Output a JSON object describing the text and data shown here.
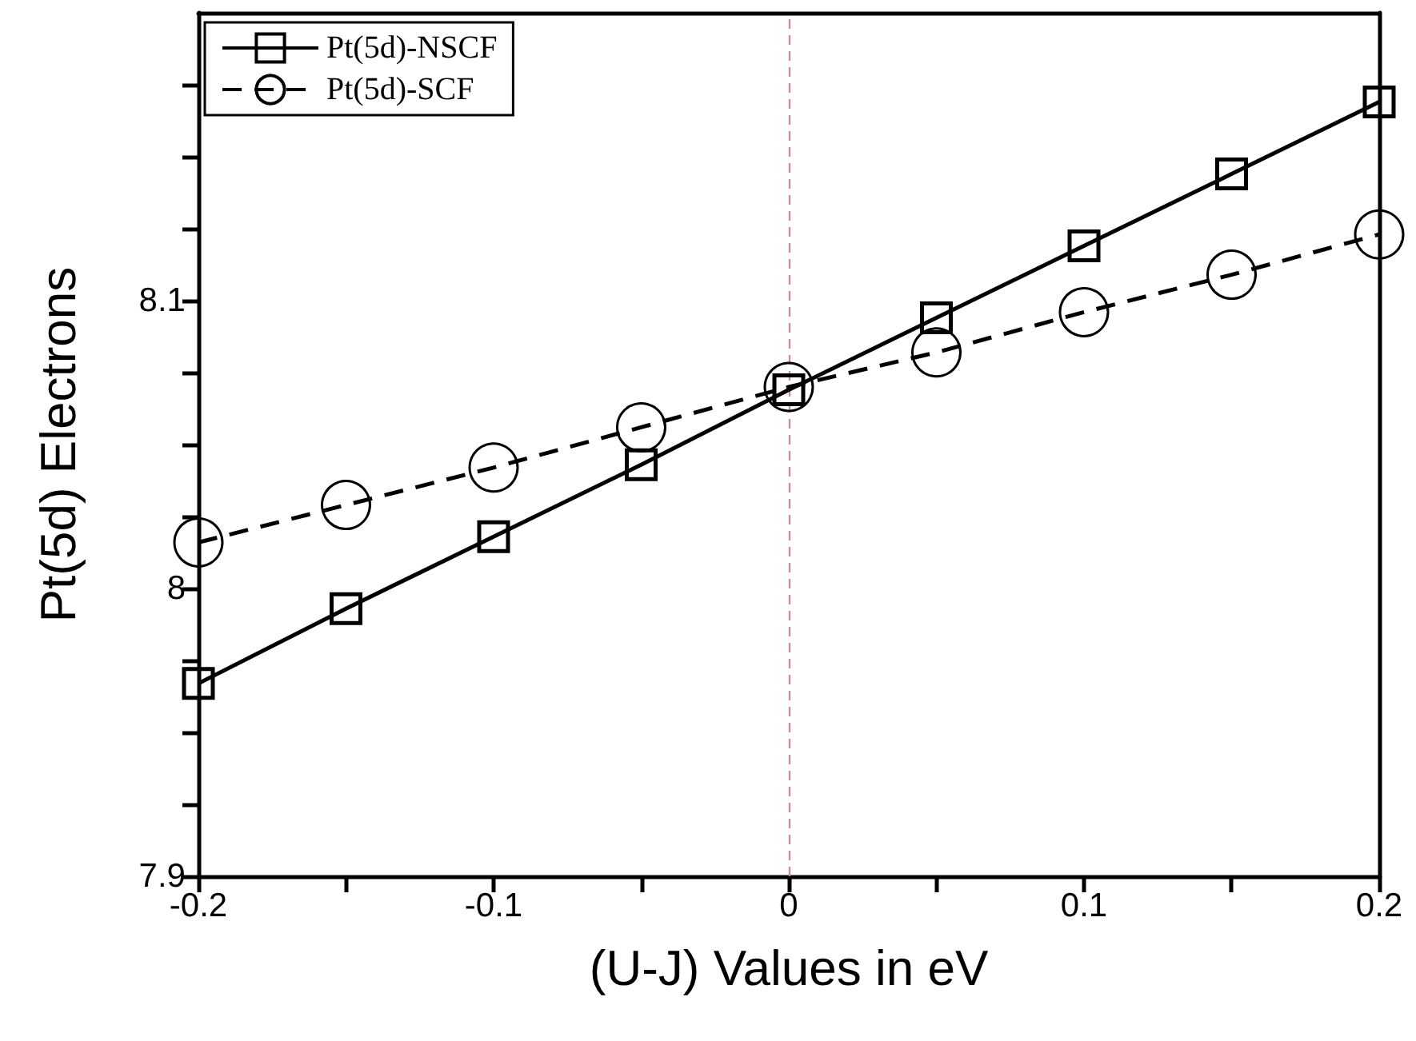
{
  "chart_data": {
    "type": "line",
    "xlabel": "(U-J) Values in eV",
    "ylabel": "Pt(5d) Electrons",
    "x": [
      -0.2,
      -0.15,
      -0.1,
      -0.05,
      0,
      0.05,
      0.1,
      0.15,
      0.2
    ],
    "series": [
      {
        "name": "Pt(5d)-NSCF",
        "color": "#000000",
        "marker": "square",
        "line_style": "solid",
        "values": [
          7.967,
          7.993,
          8.018,
          8.043,
          8.069,
          8.094,
          8.119,
          8.144,
          8.169
        ]
      },
      {
        "name": "Pt(5d)-SCF",
        "color": "#000000",
        "marker": "circle",
        "line_style": "dashed",
        "values": [
          8.016,
          8.029,
          8.042,
          8.056,
          8.07,
          8.082,
          8.096,
          8.109,
          8.123
        ]
      }
    ],
    "xlim": [
      -0.2,
      0.2
    ],
    "xticks": [
      -0.2,
      {
        "value": -0.15,
        "label": null
      },
      -0.1,
      {
        "value": -0.05,
        "label": null
      },
      0,
      {
        "value": 0.05,
        "label": null
      },
      0.1,
      {
        "value": 0.15,
        "label": null
      },
      0.2
    ],
    "ylim": [
      7.9,
      8.2
    ],
    "yticks": [
      7.9,
      {
        "value": 7.925,
        "label": null
      },
      {
        "value": 7.95,
        "label": null
      },
      {
        "value": 7.975,
        "label": null
      },
      8,
      {
        "value": 8.025,
        "label": null
      },
      {
        "value": 8.05,
        "label": null
      },
      {
        "value": 8.075,
        "label": null
      },
      8.1,
      {
        "value": 8.125,
        "label": null
      },
      {
        "value": 8.15,
        "label": null
      },
      {
        "value": 8.175,
        "label": null
      }
    ],
    "ref_lines": [
      {
        "axis": "x",
        "value": 0,
        "label": null,
        "color": "#c89090",
        "line_style": "dashed"
      }
    ],
    "legend": "top left",
    "grid": false
  }
}
